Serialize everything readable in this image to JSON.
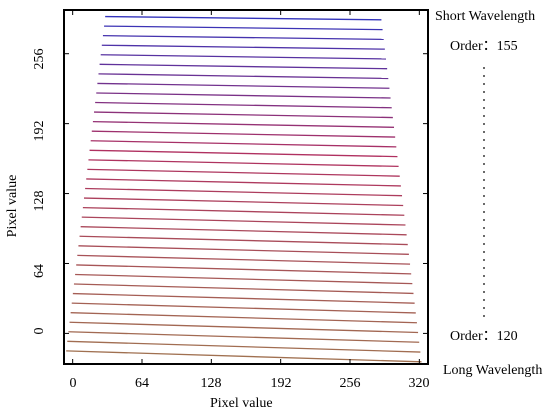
{
  "chart_data": {
    "type": "line",
    "title": "",
    "xlabel": "Pixel value",
    "ylabel": "Pixel value",
    "xlim": [
      -8,
      328
    ],
    "ylim": [
      -28,
      296
    ],
    "x_ticks": [
      "0",
      "64",
      "128",
      "192",
      "256",
      "320"
    ],
    "y_ticks": [
      "0",
      "64",
      "128",
      "192",
      "256"
    ],
    "grid": false,
    "order_count": 36,
    "series_color_top": "#3333bb",
    "series_color_mid": "#b03060",
    "series_color_bottom": "#a07050",
    "top_line": {
      "x": [
        30,
        285
      ],
      "y": [
        290,
        287
      ]
    },
    "bottom_line": {
      "x": [
        -6,
        322
      ],
      "y": [
        -16,
        -26
      ]
    }
  },
  "annotations": {
    "short_wavelength": "Short Wavelength",
    "long_wavelength": "Long Wavelength",
    "order_top": "Order：155",
    "order_bottom": "Order：120"
  }
}
